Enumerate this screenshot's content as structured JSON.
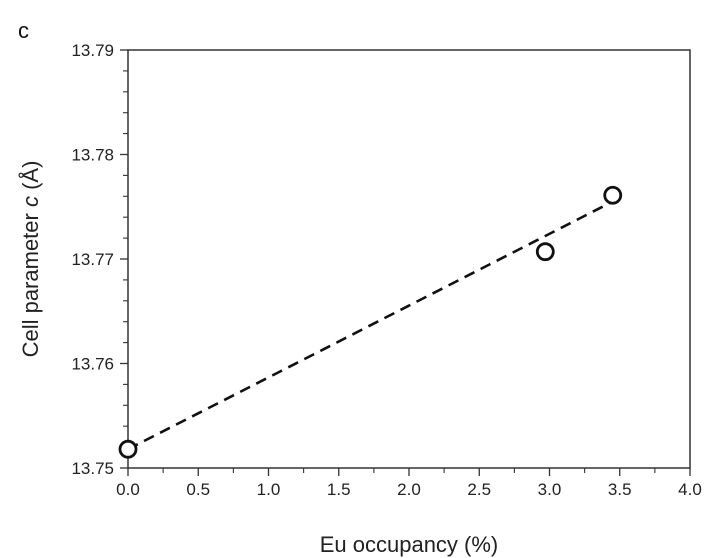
{
  "panel_label": "c",
  "chart_data": {
    "type": "scatter",
    "title": "",
    "xlabel": "Eu occupancy (%)",
    "ylabel_prefix": "Cell parameter ",
    "ylabel_var": "c",
    "ylabel_suffix": " (Å)",
    "xlim": [
      0.0,
      4.0
    ],
    "ylim": [
      13.75,
      13.79
    ],
    "xticks": [
      "0.0",
      "0.5",
      "1.0",
      "1.5",
      "2.0",
      "2.5",
      "3.0",
      "3.5",
      "4.0"
    ],
    "yticks": [
      "13.75",
      "13.76",
      "13.77",
      "13.78",
      "13.79"
    ],
    "points": [
      {
        "x": 0.0,
        "y": 13.7518
      },
      {
        "x": 2.97,
        "y": 13.7707
      },
      {
        "x": 3.45,
        "y": 13.7761
      }
    ],
    "fit_line": {
      "x": [
        0.0,
        3.45
      ],
      "y": [
        13.7518,
        13.7755
      ],
      "style": "dashed"
    },
    "grid": false,
    "colors": {
      "marker": "#111111",
      "line": "#111111",
      "axis": "#333333"
    }
  }
}
